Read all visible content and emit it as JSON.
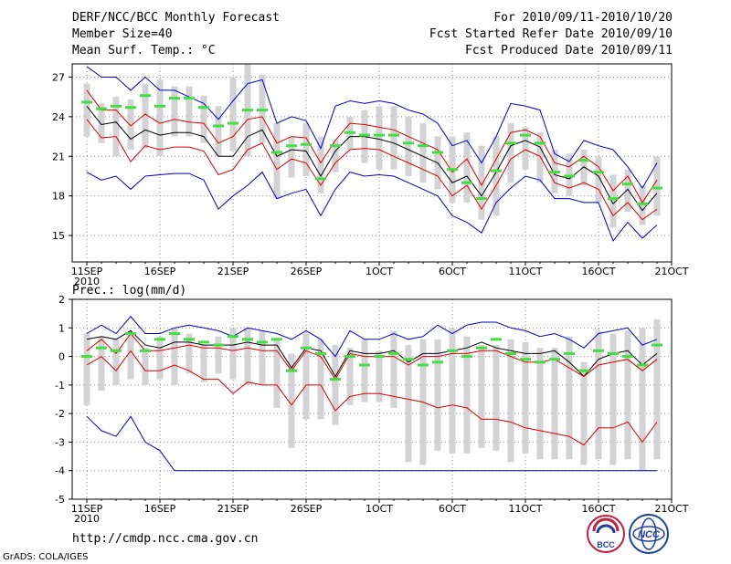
{
  "header": {
    "title": "DERF/NCC/BCC Monthly Forecast",
    "member_size": "Member Size=40",
    "variable": "Mean Surf. Temp.: °C",
    "period": "For 2010/09/11-2010/10/20",
    "started_refer": "Fcst Started Refer Date 2010/09/10",
    "produced": "Fcst Produced Date 2010/09/11"
  },
  "footer": {
    "url": "http://cmdp.ncc.cma.gov.cn",
    "credit": "GrADS: COLA/IGES",
    "logo_bcc_text": "BCC",
    "logo_ncc_text": "NCC"
  },
  "colors": {
    "envelope": "#0000cc",
    "spread": "#dd0000",
    "ensemble_mean": "#000000",
    "box": "#d3d3d6",
    "median": "#44dd44",
    "grid": "#888888"
  },
  "x_ticks": [
    "11SEP",
    "16SEP",
    "21SEP",
    "26SEP",
    "1OCT",
    "6OCT",
    "11OCT",
    "16OCT",
    "21OCT"
  ],
  "x_tick_days": [
    0,
    5,
    10,
    15,
    20,
    25,
    30,
    35,
    40
  ],
  "year_label": "2010",
  "chart_data": [
    {
      "type": "line",
      "title": "Mean Surf. Temp.: °C",
      "ylim": [
        13,
        28
      ],
      "yticks": [
        15,
        18,
        21,
        24,
        27
      ],
      "xlim": [
        -1,
        40
      ],
      "series": [
        {
          "name": "max",
          "color": "#0000cc",
          "values": [
            27.8,
            27.0,
            27.0,
            26.0,
            27.0,
            26.0,
            26.0,
            25.5,
            25.0,
            23.8,
            25.2,
            26.5,
            26.8,
            23.5,
            24.0,
            23.7,
            21.6,
            24.8,
            25.2,
            25.0,
            25.2,
            25.0,
            24.5,
            24.2,
            23.5,
            21.8,
            22.2,
            20.5,
            22.5,
            25.0,
            24.8,
            24.5,
            21.2,
            20.6,
            22.2,
            21.8,
            21.5,
            20.2,
            18.6,
            20.5
          ]
        },
        {
          "name": "q75",
          "color": "#dd0000",
          "values": [
            26.0,
            24.5,
            24.5,
            23.3,
            24.2,
            23.5,
            23.8,
            23.6,
            23.5,
            22.0,
            22.5,
            23.8,
            24.0,
            22.0,
            22.5,
            22.4,
            20.5,
            22.2,
            23.5,
            23.4,
            23.2,
            23.0,
            22.5,
            22.0,
            21.5,
            19.8,
            20.8,
            18.8,
            20.8,
            22.8,
            23.0,
            22.5,
            20.5,
            20.2,
            21.0,
            20.2,
            18.4,
            19.5,
            17.5,
            19.2
          ]
        },
        {
          "name": "mean",
          "color": "#000000",
          "values": [
            24.8,
            23.4,
            23.6,
            22.3,
            23.0,
            22.6,
            22.8,
            22.8,
            22.5,
            21.0,
            21.0,
            22.5,
            23.0,
            21.0,
            21.5,
            21.4,
            19.5,
            21.4,
            22.5,
            22.5,
            22.3,
            22.0,
            21.5,
            21.0,
            20.5,
            19.0,
            19.5,
            18.0,
            19.8,
            21.8,
            22.2,
            21.7,
            19.6,
            19.3,
            20.2,
            19.5,
            17.4,
            18.5,
            16.9,
            18.2
          ]
        },
        {
          "name": "q25",
          "color": "#dd0000",
          "values": [
            23.8,
            22.4,
            22.5,
            20.6,
            21.8,
            21.5,
            21.7,
            21.7,
            21.4,
            19.6,
            20.0,
            21.5,
            22.0,
            20.0,
            20.8,
            20.5,
            18.8,
            20.5,
            21.5,
            21.6,
            21.5,
            21.0,
            20.5,
            20.0,
            19.5,
            18.0,
            18.8,
            17.0,
            18.8,
            20.8,
            21.5,
            21.0,
            19.0,
            18.6,
            19.0,
            18.5,
            16.5,
            17.5,
            16.2,
            17.0
          ]
        },
        {
          "name": "min",
          "color": "#0000cc",
          "values": [
            19.8,
            19.2,
            19.5,
            18.5,
            19.5,
            19.6,
            19.7,
            19.7,
            19.2,
            17.0,
            18.0,
            18.8,
            19.8,
            17.8,
            18.2,
            18.5,
            16.5,
            18.5,
            19.8,
            19.5,
            19.6,
            19.5,
            19.0,
            18.5,
            18.0,
            16.5,
            16.0,
            15.2,
            17.5,
            18.6,
            19.5,
            19.2,
            17.8,
            17.8,
            17.5,
            17.5,
            14.6,
            16.0,
            14.8,
            15.8
          ]
        }
      ],
      "box_low": [
        22.5,
        22.0,
        21.0,
        21.5,
        21.6,
        21.0,
        22.5,
        22.5,
        22.0,
        21.0,
        21.4,
        21.0,
        22.0,
        17.8,
        19.4,
        19.5,
        18.2,
        19.8,
        21.5,
        20.5,
        20.0,
        20.0,
        19.5,
        19.0,
        18.5,
        17.5,
        17.5,
        16.2,
        16.5,
        19.0,
        20.0,
        19.0,
        18.2,
        18.0,
        18.8,
        17.5,
        15.6,
        16.8,
        15.8,
        16.5
      ],
      "box_high": [
        26.5,
        25.0,
        25.5,
        25.3,
        26.5,
        26.8,
        26.3,
        26.3,
        25.6,
        24.8,
        27.0,
        28.0,
        27.2,
        23.5,
        22.5,
        23.5,
        22.5,
        22.2,
        24.0,
        24.5,
        24.8,
        24.8,
        24.0,
        23.5,
        22.5,
        22.5,
        22.8,
        21.8,
        22.5,
        23.5,
        23.2,
        22.8,
        21.5,
        21.2,
        21.5,
        21.0,
        19.6,
        20.0,
        18.8,
        21.0
      ],
      "median": [
        25.1,
        24.6,
        24.8,
        24.7,
        25.6,
        24.8,
        25.4,
        25.4,
        24.7,
        23.3,
        23.5,
        24.5,
        24.5,
        21.3,
        21.8,
        21.9,
        19.3,
        21.8,
        22.8,
        22.6,
        22.6,
        22.6,
        22.0,
        21.8,
        21.3,
        20.0,
        19.0,
        17.8,
        19.9,
        22.0,
        22.6,
        22.0,
        19.8,
        19.5,
        20.7,
        19.8,
        17.8,
        18.9,
        17.4,
        18.6
      ]
    },
    {
      "type": "line",
      "title": "Prec.: log(mm/d)",
      "ylim": [
        -5,
        2
      ],
      "yticks": [
        -5,
        -4,
        -3,
        -2,
        -1,
        0,
        1,
        2
      ],
      "xlim": [
        -1,
        40
      ],
      "series": [
        {
          "name": "max",
          "color": "#0000cc",
          "values": [
            0.8,
            1.1,
            0.8,
            1.4,
            0.8,
            0.8,
            1.0,
            1.1,
            1.0,
            0.9,
            0.7,
            1.0,
            0.9,
            0.8,
            0.6,
            0.9,
            0.6,
            0.0,
            0.9,
            0.6,
            0.6,
            0.8,
            0.6,
            0.7,
            1.1,
            0.8,
            1.1,
            1.2,
            1.2,
            1.0,
            0.9,
            0.7,
            0.8,
            0.6,
            0.3,
            0.8,
            0.9,
            1.0,
            0.4,
            0.6
          ]
        },
        {
          "name": "q75",
          "color": "#000000",
          "values": [
            0.6,
            0.7,
            0.6,
            0.9,
            0.4,
            0.3,
            0.5,
            0.5,
            0.4,
            0.4,
            0.4,
            0.5,
            0.4,
            0.4,
            -0.4,
            0.3,
            0.2,
            -0.7,
            0.2,
            0.1,
            0.1,
            0.2,
            -0.2,
            0.1,
            0.1,
            0.2,
            0.3,
            0.5,
            0.3,
            0.2,
            0.1,
            0.1,
            0.2,
            -0.2,
            -0.7,
            -0.1,
            0.1,
            0.2,
            -0.3,
            0.1
          ]
        },
        {
          "name": "q25",
          "color": "#dd0000",
          "values": [
            0.2,
            0.6,
            0.1,
            0.8,
            0.2,
            0.2,
            0.3,
            0.4,
            0.3,
            0.3,
            0.2,
            0.3,
            0.2,
            0.2,
            -0.5,
            0.2,
            0.0,
            -0.8,
            0.1,
            0.0,
            0.0,
            0.0,
            -0.3,
            0.0,
            0.0,
            0.1,
            0.1,
            0.2,
            0.2,
            0.0,
            -0.2,
            -0.2,
            -0.1,
            -0.4,
            -0.7,
            -0.3,
            -0.2,
            -0.1,
            -0.5,
            -0.1
          ]
        },
        {
          "name": "low",
          "color": "#dd0000",
          "values": [
            -0.3,
            0.0,
            -0.5,
            0.2,
            -0.5,
            -0.5,
            -0.3,
            -0.5,
            -0.8,
            -0.8,
            -1.3,
            -0.9,
            -1.0,
            -1.0,
            -1.7,
            -1.0,
            -1.0,
            -1.9,
            -1.4,
            -1.3,
            -1.3,
            -1.4,
            -1.5,
            -1.6,
            -1.8,
            -1.7,
            -1.8,
            -2.2,
            -2.2,
            -2.3,
            -2.5,
            -2.6,
            -2.7,
            -2.8,
            -3.1,
            -2.5,
            -2.5,
            -2.3,
            -3.0,
            -2.3
          ]
        },
        {
          "name": "min",
          "color": "#0000cc",
          "values": [
            -2.1,
            -2.6,
            -2.8,
            -2.1,
            -3.0,
            -3.3,
            -4.0,
            -4.0,
            -4.0,
            -4.0,
            -4.0,
            -4.0,
            -4.0,
            -4.0,
            -4.0,
            -4.0,
            -4.0,
            -4.0,
            -4.0,
            -4.0,
            -4.0,
            -4.0,
            -4.0,
            -4.0,
            -4.0,
            -4.0,
            -4.0,
            -4.0,
            -4.0,
            -4.0,
            -4.0,
            -4.0,
            -4.0,
            -4.0,
            -4.0,
            -4.0,
            -4.0,
            -4.0,
            -4.0,
            -4.0
          ]
        }
      ],
      "box_low": [
        -1.7,
        -1.2,
        -1.0,
        -0.8,
        -1.0,
        -0.8,
        -1.0,
        -0.6,
        -0.9,
        -0.6,
        -0.8,
        -1.0,
        -1.0,
        -1.8,
        -3.2,
        -2.2,
        -2.2,
        -2.4,
        -1.7,
        -1.6,
        -1.6,
        -1.8,
        -3.7,
        -3.8,
        -3.3,
        -3.4,
        -3.4,
        -3.2,
        -3.3,
        -3.7,
        -3.4,
        -3.6,
        -3.6,
        -3.6,
        -3.8,
        -3.6,
        -3.8,
        -3.6,
        -4.0,
        -3.6
      ],
      "box_high": [
        0.8,
        0.7,
        0.6,
        0.8,
        0.3,
        0.7,
        1.0,
        0.8,
        0.4,
        0.7,
        1.0,
        1.0,
        0.9,
        0.6,
        0.1,
        0.8,
        0.6,
        0.4,
        0.3,
        0.6,
        0.2,
        0.9,
        0.4,
        0.6,
        0.6,
        1.0,
        0.7,
        0.4,
        0.4,
        0.6,
        0.5,
        0.3,
        0.3,
        0.7,
        -0.2,
        0.9,
        0.8,
        0.9,
        1.0,
        1.3
      ],
      "median": [
        0.0,
        0.3,
        0.2,
        0.8,
        0.2,
        0.6,
        0.8,
        0.6,
        0.5,
        0.4,
        0.7,
        0.6,
        0.5,
        0.6,
        -0.5,
        0.3,
        0.1,
        -0.8,
        0.0,
        -0.3,
        0.0,
        0.1,
        -0.1,
        -0.3,
        -0.2,
        0.2,
        0.0,
        0.3,
        0.6,
        0.1,
        -0.1,
        -0.2,
        -0.1,
        0.1,
        -0.5,
        0.2,
        0.1,
        0.0,
        -0.3,
        0.4
      ]
    }
  ]
}
